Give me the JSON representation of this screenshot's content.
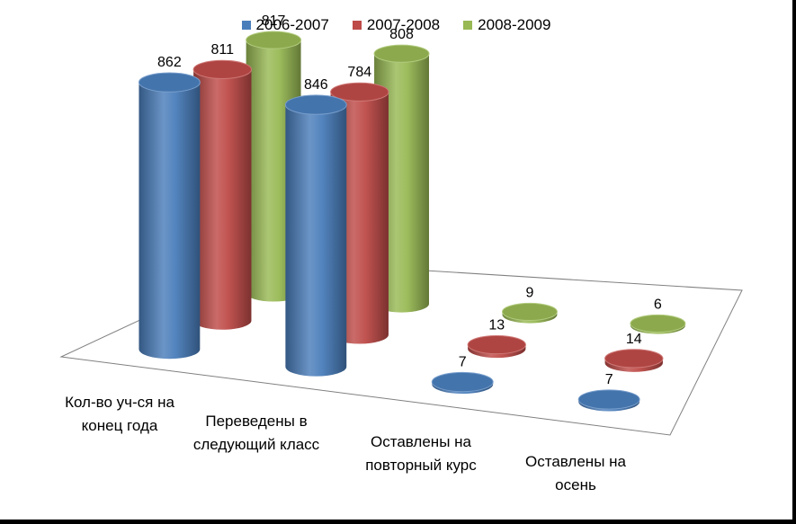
{
  "chart_data": {
    "type": "bar",
    "subtype": "3d-cylinder",
    "title": "",
    "xlabel": "",
    "ylabel": "",
    "categories": [
      "Кол-во уч-ся на конец года",
      "Переведены в следующий класс",
      "Оставлены на повторный курс",
      "Оставлены на осень"
    ],
    "category_lines": [
      [
        "Кол-во уч-ся на",
        "конец года"
      ],
      [
        "Переведены в",
        "следующий класс"
      ],
      [
        "Оставлены на",
        "повторный курс"
      ],
      [
        "Оставлены на",
        "осень"
      ]
    ],
    "series": [
      {
        "name": "2006-2007",
        "values": [
          862,
          846,
          7,
          7
        ],
        "color": "#4a7ebb"
      },
      {
        "name": "2007-2008",
        "values": [
          811,
          784,
          13,
          14
        ],
        "color": "#be4b48"
      },
      {
        "name": "2008-2009",
        "values": [
          817,
          808,
          9,
          6
        ],
        "color": "#98b954"
      }
    ],
    "legend_position": "top",
    "grid": false
  }
}
